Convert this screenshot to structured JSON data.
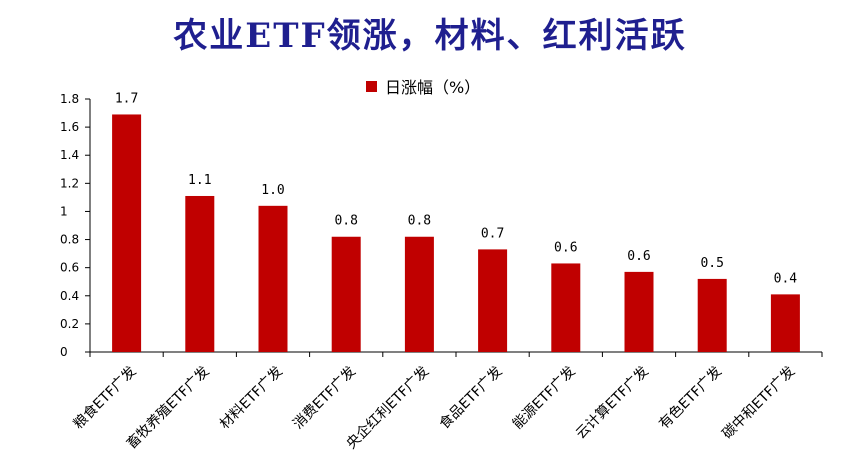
{
  "chart_data": {
    "type": "bar",
    "title": "农业ETF领涨，材料、红利活跃",
    "legend": {
      "label": "日涨幅（%）",
      "color": "#c00000",
      "placement": "top-center"
    },
    "categories": [
      "粮食ETF广发",
      "畜牧养殖ETF广发",
      "材料ETF广发",
      "消费ETF广发",
      "央企红利ETF广发",
      "食品ETF广发",
      "能源ETF广发",
      "云计算ETF广发",
      "有色ETF广发",
      "碳中和ETF广发"
    ],
    "values": [
      1.69,
      1.11,
      1.04,
      0.82,
      0.82,
      0.73,
      0.63,
      0.57,
      0.52,
      0.41
    ],
    "value_labels": [
      "1.7",
      "1.1",
      "1.0",
      "0.8",
      "0.8",
      "0.7",
      "0.6",
      "0.6",
      "0.5",
      "0.4"
    ],
    "y_ticks": [
      "0",
      "0.2",
      "0.4",
      "0.6",
      "0.8",
      "1",
      "1.2",
      "1.4",
      "1.6",
      "1.8"
    ],
    "ylim": [
      0,
      1.8
    ],
    "grid": false,
    "bar_color": "#c00000"
  }
}
